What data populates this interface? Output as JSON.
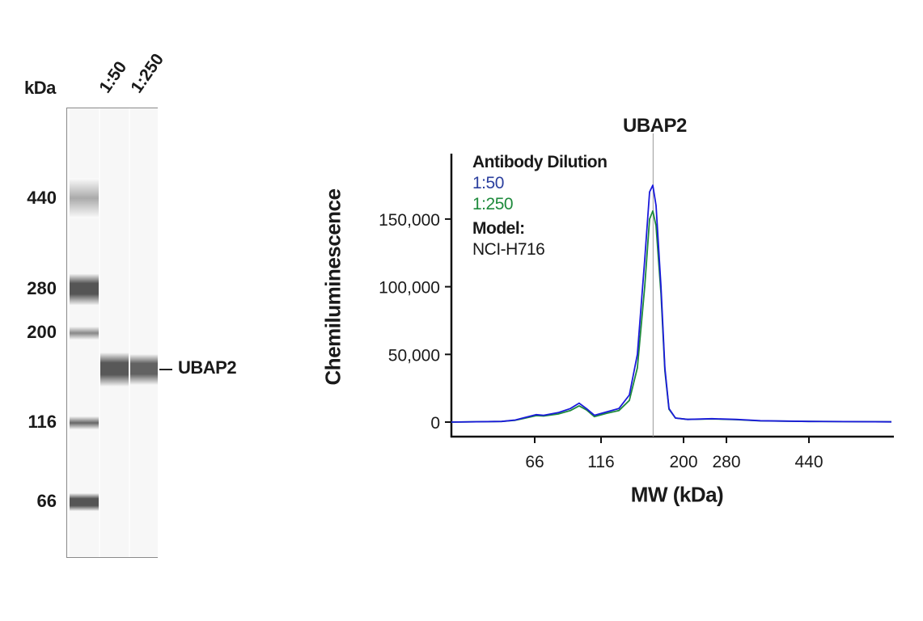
{
  "gel": {
    "unit_label": "kDa",
    "lanes": [
      "1:50",
      "1:250"
    ],
    "markers": [
      "440",
      "280",
      "200",
      "116",
      "66"
    ],
    "target_label": "UBAP2"
  },
  "chart_data": {
    "type": "line",
    "title": "UBAP2",
    "xlabel": "MW (kDa)",
    "ylabel": "Chemiluminescence",
    "x_ticks": [
      66,
      116,
      200,
      280,
      440
    ],
    "x_tick_labels": [
      "66",
      "116",
      "200",
      "280",
      "440"
    ],
    "y_ticks": [
      0,
      50000,
      100000,
      150000
    ],
    "y_tick_labels": [
      "0",
      "50,000",
      "100,000",
      "150,000"
    ],
    "xlim": [
      40,
      700
    ],
    "ylim": [
      0,
      200000
    ],
    "grid": false,
    "reference_line_x": 169,
    "legend": {
      "heading": "Antibody Dilution",
      "model_heading": "Model:",
      "model_value": "NCI-H716",
      "placement": "top-left"
    },
    "x": [
      40,
      55.7,
      59.9,
      62.3,
      67.2,
      72.7,
      83.7,
      92.8,
      99.5,
      105,
      111,
      121.8,
      134.1,
      144.8,
      153,
      160.5,
      165.4,
      168.7,
      172,
      177,
      181,
      185.2,
      191.8,
      207.5,
      252.8,
      298.8,
      345.9,
      440,
      700
    ],
    "series": [
      {
        "name": "1:50",
        "color": "#1a1adb",
        "label_color": "#2b3f9e",
        "values": [
          0,
          500,
          1500,
          3000,
          5500,
          5000,
          7000,
          10000,
          14000,
          10000,
          5000,
          7500,
          10000,
          20000,
          50000,
          120000,
          170000,
          175000,
          160000,
          100000,
          40000,
          10000,
          3000,
          2000,
          2500,
          2000,
          1000,
          500,
          200
        ]
      },
      {
        "name": "1:250",
        "color": "#1e8a3c",
        "label_color": "#1e8a3c",
        "values": [
          0,
          500,
          1300,
          2500,
          4800,
          4500,
          6000,
          8500,
          12000,
          9000,
          4000,
          6500,
          8500,
          16000,
          40000,
          100000,
          150000,
          156000,
          145000,
          95000,
          38000,
          9500,
          3000,
          2000,
          2300,
          1800,
          900,
          500,
          200
        ]
      }
    ]
  }
}
